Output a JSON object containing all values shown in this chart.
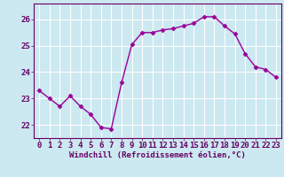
{
  "x": [
    0,
    1,
    2,
    3,
    4,
    5,
    6,
    7,
    8,
    9,
    10,
    11,
    12,
    13,
    14,
    15,
    16,
    17,
    18,
    19,
    20,
    21,
    22,
    23
  ],
  "y": [
    23.3,
    23.0,
    22.7,
    23.1,
    22.7,
    22.4,
    21.9,
    21.85,
    23.6,
    25.05,
    25.5,
    25.5,
    25.6,
    25.65,
    25.75,
    25.85,
    26.1,
    26.1,
    25.75,
    25.45,
    24.7,
    24.2,
    24.1,
    23.8
  ],
  "line_color": "#990099",
  "marker": "D",
  "marker_size": 2.5,
  "bg_color": "#cce8f0",
  "grid_color": "#ffffff",
  "xlabel": "Windchill (Refroidissement éolien,°C)",
  "xlabel_color": "#660066",
  "tick_color": "#660066",
  "ylim": [
    21.5,
    26.6
  ],
  "xlim": [
    -0.5,
    23.5
  ],
  "yticks": [
    22,
    23,
    24,
    25,
    26
  ],
  "xticks": [
    0,
    1,
    2,
    3,
    4,
    5,
    6,
    7,
    8,
    9,
    10,
    11,
    12,
    13,
    14,
    15,
    16,
    17,
    18,
    19,
    20,
    21,
    22,
    23
  ],
  "xlabel_fontsize": 6.5,
  "tick_fontsize": 6.5,
  "linewidth": 1.0
}
